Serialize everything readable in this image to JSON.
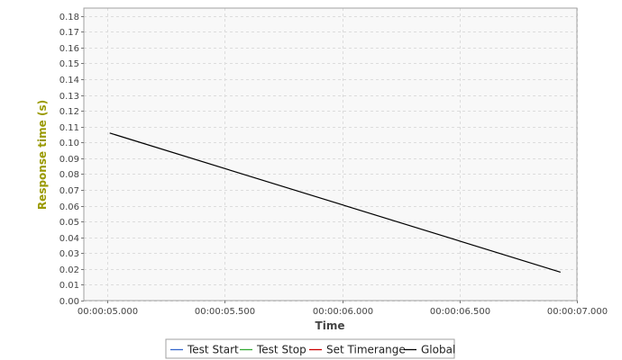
{
  "chart_data": {
    "type": "line",
    "xlabel": "Time",
    "ylabel": "Response time (s)",
    "x_tick_labels": [
      "00:00:05.000",
      "00:00:05.500",
      "00:00:06.000",
      "00:00:06.500",
      "00:00:07.000"
    ],
    "x_ticks_seconds": [
      5.0,
      5.5,
      6.0,
      6.5,
      7.0
    ],
    "xlim_seconds": [
      4.9,
      7.0
    ],
    "y_ticks": [
      "0.00",
      "0.01",
      "0.02",
      "0.03",
      "0.04",
      "0.05",
      "0.06",
      "0.07",
      "0.08",
      "0.09",
      "0.10",
      "0.11",
      "0.12",
      "0.13",
      "0.14",
      "0.15",
      "0.16",
      "0.17",
      "0.18"
    ],
    "ylim": [
      0,
      0.185
    ],
    "grid": true,
    "legend_position": "bottom",
    "series": [
      {
        "name": "Test Start",
        "color": "#3366cc",
        "points": []
      },
      {
        "name": "Test Stop",
        "color": "#33aa33",
        "points": []
      },
      {
        "name": "Set Timerange",
        "color": "#cc0000",
        "points": []
      },
      {
        "name": "Global",
        "color": "#000000",
        "points": [
          {
            "x": "00:00:05.010",
            "x_seconds": 5.01,
            "y": 0.106
          },
          {
            "x": "00:00:06.930",
            "x_seconds": 6.93,
            "y": 0.018
          }
        ]
      }
    ],
    "colors": {
      "ylabel": "#999900",
      "xlabel": "#444444",
      "grid": "#dcdcdc",
      "plot_background": "#f8f8f8",
      "plot_border": "#a0a0a0"
    }
  }
}
